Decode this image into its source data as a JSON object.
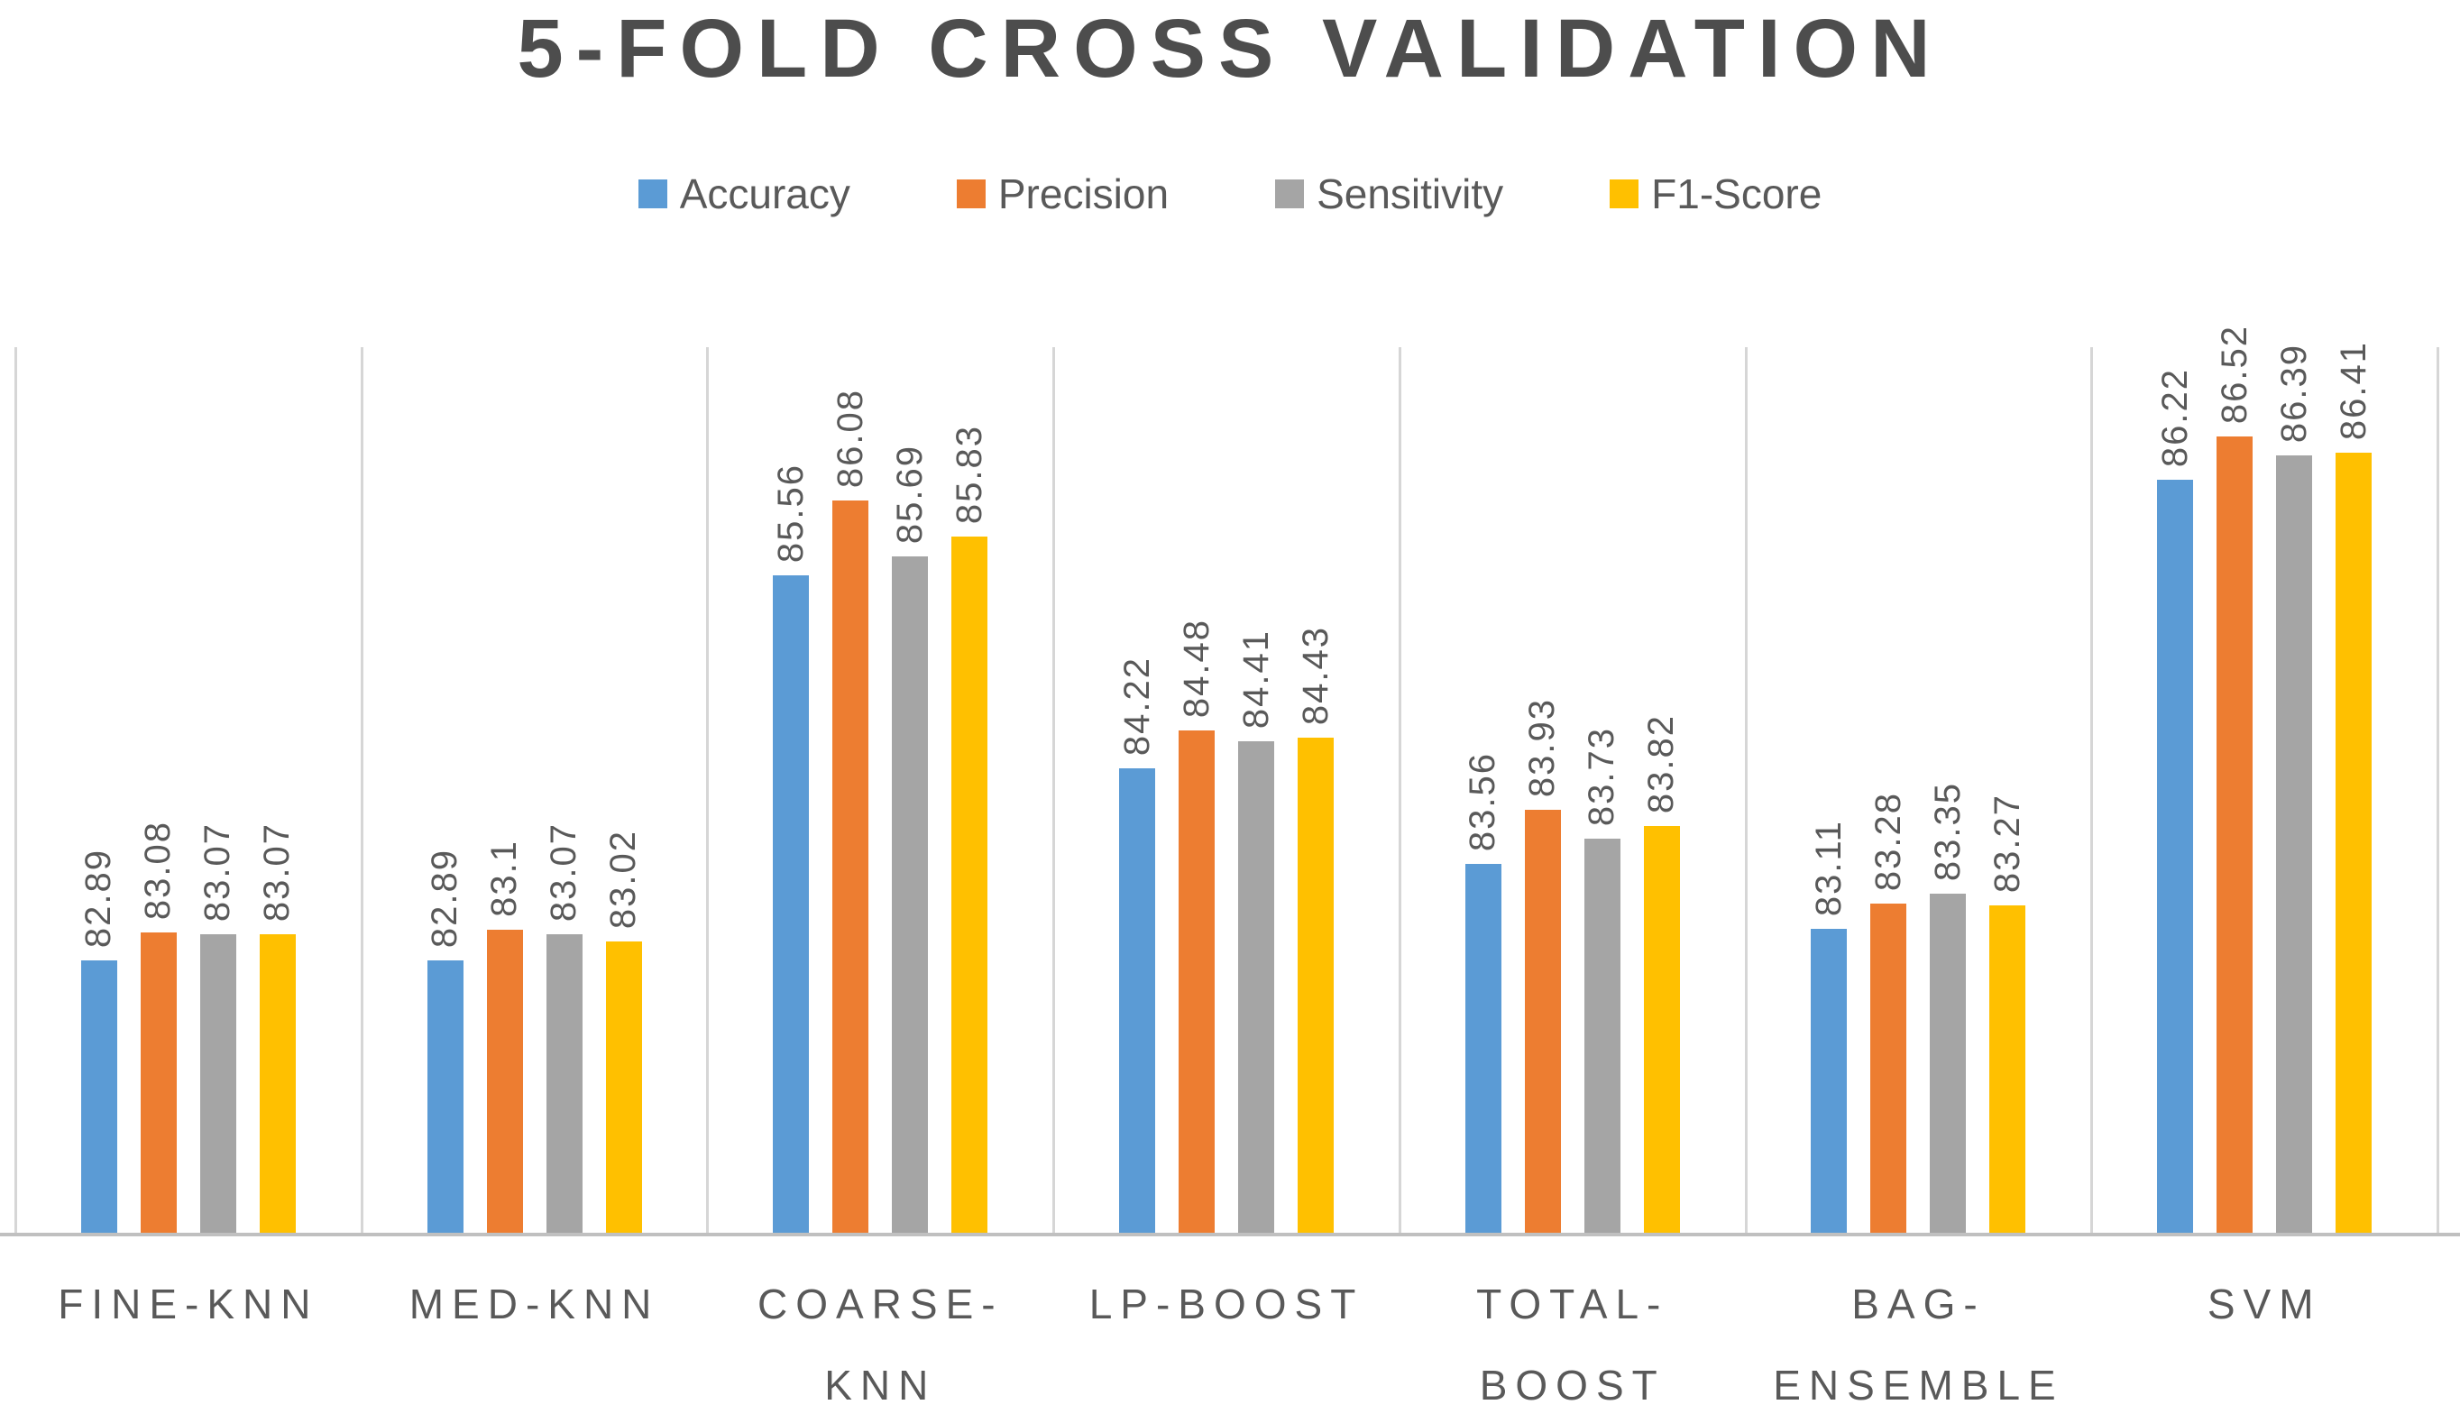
{
  "title": "5-FOLD CROSS VALIDATION",
  "chart_data": {
    "type": "bar",
    "title": "5-FOLD CROSS VALIDATION",
    "categories": [
      "FINE-KNN",
      "MED-KNN",
      "COARSE-\nKNN",
      "LP-BOOST",
      "TOTAL-\nBOOST",
      "BAG-\nENSEMBLE",
      "SVM"
    ],
    "series": [
      {
        "name": "Accuracy",
        "color": "#5b9bd5",
        "values": [
          82.89,
          82.89,
          85.56,
          84.22,
          83.56,
          83.11,
          86.22
        ]
      },
      {
        "name": "Precision",
        "color": "#ed7d31",
        "values": [
          83.08,
          83.1,
          86.08,
          84.48,
          83.93,
          83.28,
          86.52
        ]
      },
      {
        "name": "Sensitivity",
        "color": "#a5a5a5",
        "values": [
          83.07,
          83.07,
          85.69,
          84.41,
          83.73,
          83.35,
          86.39
        ]
      },
      {
        "name": "F1-Score",
        "color": "#ffc000",
        "values": [
          83.07,
          83.02,
          85.83,
          84.43,
          83.82,
          83.27,
          86.41
        ]
      }
    ],
    "data_labels_visible": true,
    "data_label_rotation_deg": -90,
    "xlabel": "",
    "ylabel": "",
    "y_axis_labels_visible": false,
    "ylim": [
      81,
      87.14
    ],
    "legend_position": "top",
    "grid": "vertical category separators only",
    "text_color": "#595959",
    "axis_line_color": "#c0c0c0",
    "gridline_color": "#d6d6d6"
  }
}
